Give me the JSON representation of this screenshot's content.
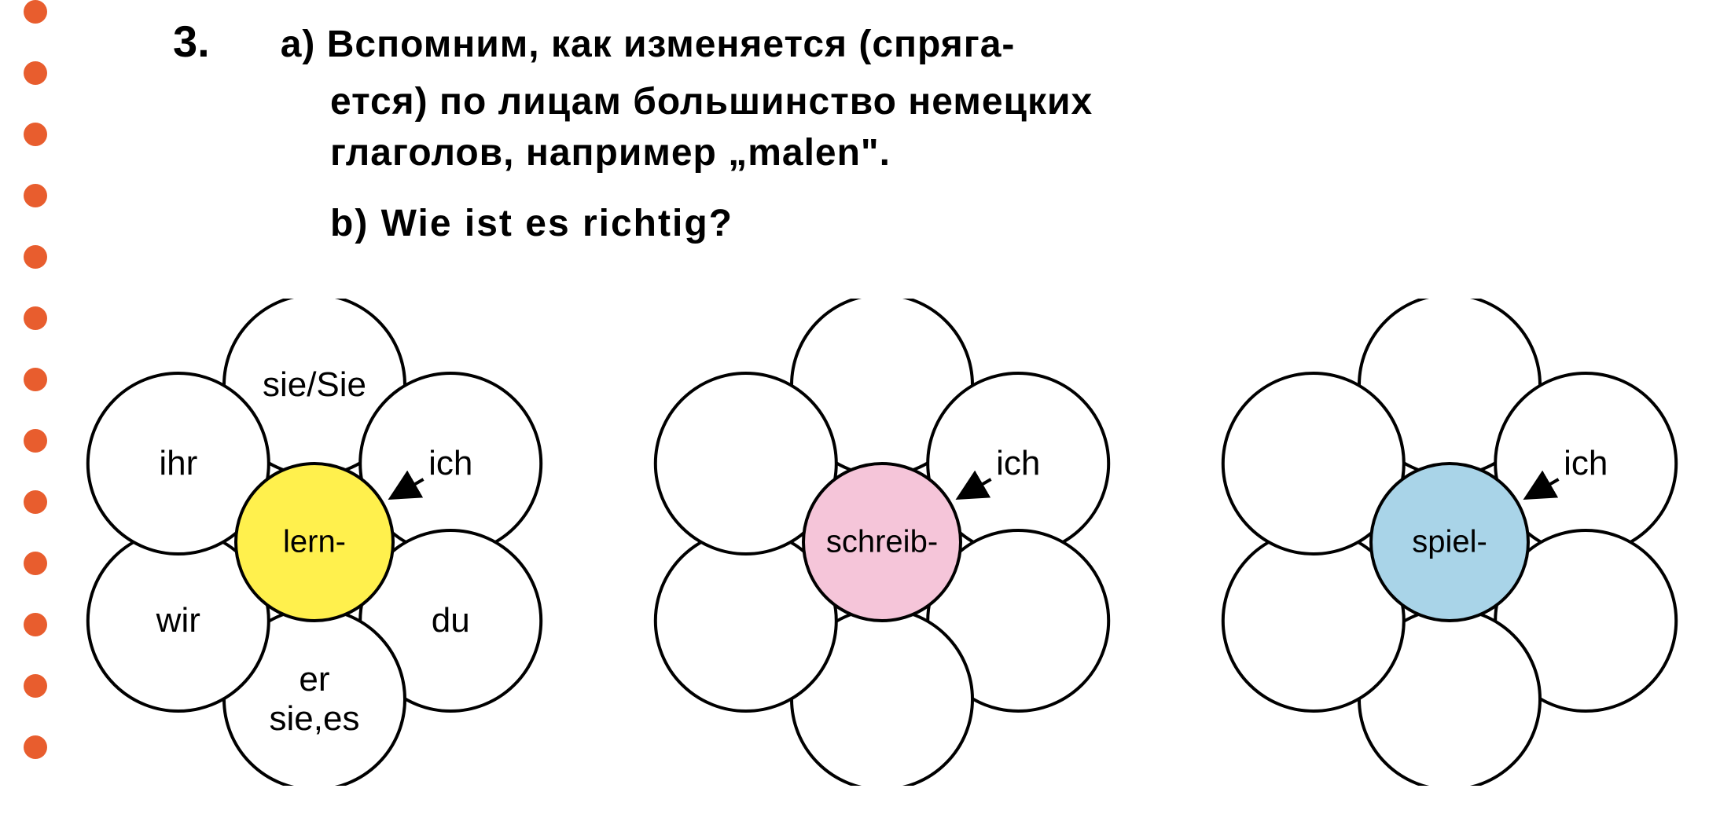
{
  "dots": {
    "color": "#e85d2e",
    "count": 13,
    "radius": 15
  },
  "task": {
    "number": "3.",
    "line_a1": "a) Вспомним, как изменяется (спряга-",
    "line_a2": "ется) по лицам большинство немецких",
    "line_a3": "глаголов, например „malen\".",
    "line_b": "b)  Wie  ist  es  richtig?"
  },
  "flowers": {
    "stroke": "#000000",
    "stroke_width": 4,
    "petal_fill": "#ffffff",
    "items": [
      {
        "center_fill": "#fff04d",
        "center_label": "lern-",
        "arrow": true,
        "petals": {
          "top": "sie/Sie",
          "top_right": "ich",
          "bottom_right": "du",
          "bottom": "er\nsie,es",
          "bottom_left": "wir",
          "top_left": "ihr"
        }
      },
      {
        "center_fill": "#f5c5d9",
        "center_label": "schreib-",
        "arrow": true,
        "petals": {
          "top": "",
          "top_right": "ich",
          "bottom_right": "",
          "bottom": "",
          "bottom_left": "",
          "top_left": ""
        }
      },
      {
        "center_fill": "#a9d4e8",
        "center_label": "spiel-",
        "arrow": true,
        "petals": {
          "top": "",
          "top_right": "ich",
          "bottom_right": "",
          "bottom": "",
          "bottom_left": "",
          "top_left": ""
        }
      }
    ]
  }
}
